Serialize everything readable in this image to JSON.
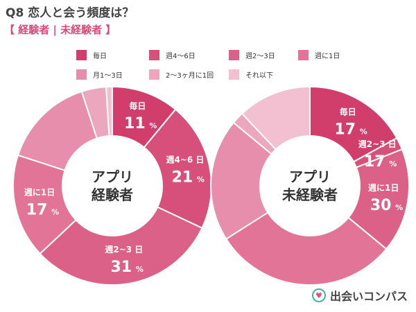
{
  "title": "Q8 恋人と会う頻度は？",
  "subtitle": "【 経験者 | 未経験者 】",
  "legend": [
    {
      "label": "毎日",
      "color": "#d23e6c"
    },
    {
      "label": "週4～6日",
      "color": "#d74f7b"
    },
    {
      "label": "週2～3日",
      "color": "#dc6189"
    },
    {
      "label": "週に1日",
      "color": "#e17497"
    },
    {
      "label": "月1～3日",
      "color": "#e68eab"
    },
    {
      "label": "2～3ヶ月に1回",
      "color": "#eca6be"
    },
    {
      "label": "それ以下",
      "color": "#f2c0d1"
    }
  ],
  "brand": "出会いコンパス",
  "chart_data": [
    {
      "type": "pie",
      "center_label": [
        "アプリ",
        "経験者"
      ],
      "categories": [
        "毎日",
        "週4～6日",
        "週2～3日",
        "週に1日",
        "月1～3日",
        "2～3ヶ月に1回",
        "それ以下"
      ],
      "values": [
        11,
        21,
        31,
        17,
        15,
        4,
        1
      ],
      "labels": [
        {
          "name": "毎日",
          "value": "11"
        },
        {
          "name": "週4~6 日",
          "value": "21"
        },
        {
          "name": "週2~3 日",
          "value": "31"
        },
        {
          "name": "週に1日",
          "value": "17"
        }
      ]
    },
    {
      "type": "pie",
      "center_label": [
        "アプリ",
        "未経験者"
      ],
      "categories": [
        "毎日",
        "週4～6日",
        "週2～3日",
        "週に1日",
        "月1～3日",
        "2～3ヶ月に1回",
        "それ以下"
      ],
      "values": [
        17,
        2,
        17,
        30,
        20,
        2,
        12
      ],
      "labels": [
        {
          "name": "毎日",
          "value": "17"
        },
        {
          "name": "週2~3 日",
          "value": "17"
        },
        {
          "name": "週に1日",
          "value": "30"
        }
      ]
    }
  ]
}
